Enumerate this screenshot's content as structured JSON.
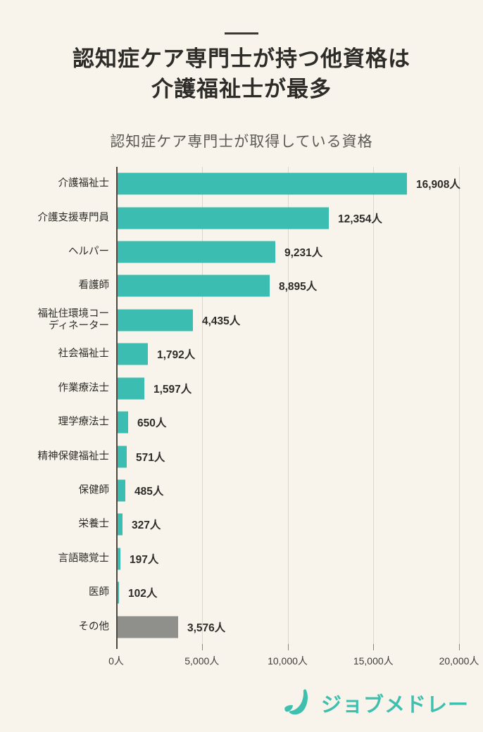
{
  "header": {
    "title_line1": "認知症ケア専門士が持つ他資格は",
    "title_line2": "介護福祉士が最多"
  },
  "chart_data": {
    "type": "bar",
    "orientation": "horizontal",
    "title": "認知症ケア専門士が取得している資格",
    "categories": [
      "介護福祉士",
      "介護支援専門員",
      "ヘルパー",
      "看護師",
      "福祉住環境コー\nディネーター",
      "社会福祉士",
      "作業療法士",
      "理学療法士",
      "精神保健福祉士",
      "保健師",
      "栄養士",
      "言語聴覚士",
      "医師",
      "その他"
    ],
    "values": [
      16908,
      12354,
      9231,
      8895,
      4435,
      1792,
      1597,
      650,
      571,
      485,
      327,
      197,
      102,
      3576
    ],
    "value_labels": [
      "16,908人",
      "12,354人",
      "9,231人",
      "8,895人",
      "4,435人",
      "1,792人",
      "1,597人",
      "650人",
      "571人",
      "485人",
      "327人",
      "197人",
      "102人",
      "3,576人"
    ],
    "bar_colors": [
      "#3BBEB1",
      "#3BBEB1",
      "#3BBEB1",
      "#3BBEB1",
      "#3BBEB1",
      "#3BBEB1",
      "#3BBEB1",
      "#3BBEB1",
      "#3BBEB1",
      "#3BBEB1",
      "#3BBEB1",
      "#3BBEB1",
      "#3BBEB1",
      "#8F8F8C"
    ],
    "xlabel": "",
    "ylabel": "",
    "xlim": [
      0,
      20000
    ],
    "x_ticks": [
      0,
      5000,
      10000,
      15000,
      20000
    ],
    "x_tick_labels": [
      "0人",
      "5,000人",
      "10,000人",
      "15,000人",
      "20,000人"
    ],
    "grid": "vertical-only",
    "legend": "none",
    "unit": "人"
  },
  "footer": {
    "logo_text": "ジョブメドレー"
  },
  "colors": {
    "background": "#F8F4EC",
    "bar_teal": "#3BBEB1",
    "bar_gray": "#8F8F8C",
    "grid_line": "#DBD7CE",
    "axis_line": "#4B4842",
    "logo_teal": "#3FBFAD",
    "title_text": "#2E2C28",
    "subtitle_text": "#5C5952"
  }
}
